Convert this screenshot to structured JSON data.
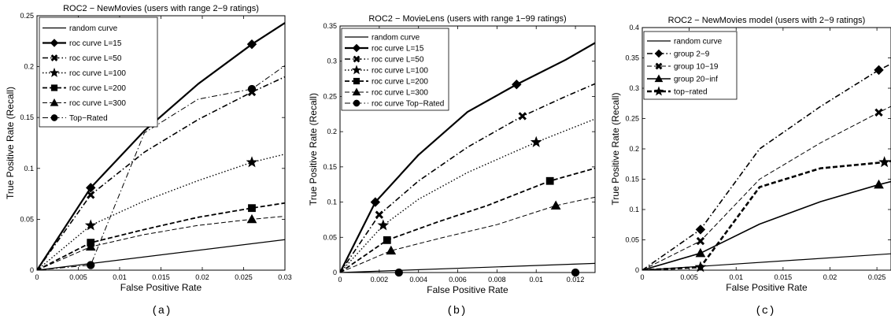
{
  "chart_data": [
    {
      "type": "line",
      "title": "ROC2 − NewMovies (users with range 2−9 ratings)",
      "xlabel": "False Positive Rate",
      "ylabel": "True Positive Rate (Recall)",
      "caption": "(a)",
      "xlim": [
        0,
        0.03
      ],
      "ylim": [
        0,
        0.25
      ],
      "xticks": [
        0,
        0.005,
        0.01,
        0.015,
        0.02,
        0.025,
        0.03
      ],
      "xtick_labels": [
        "0",
        "0.005",
        "0.01",
        "0.015",
        "0.02",
        "0.025",
        "0.03"
      ],
      "yticks": [
        0,
        0.05,
        0.1,
        0.15,
        0.2,
        0.25
      ],
      "ytick_labels": [
        "0",
        "0.05",
        "0.1",
        "0.15",
        "0.2",
        "0.25"
      ],
      "grid": false,
      "legend_position": "top-left",
      "series": [
        {
          "name": "random curve",
          "style": "solid",
          "width": 1.2,
          "marker": "none",
          "x": [
            0,
            0.03
          ],
          "y": [
            0,
            0.03
          ],
          "markers_at": []
        },
        {
          "name": "roc curve L=15",
          "style": "solid",
          "width": 2.2,
          "marker": "diamond",
          "x": [
            0,
            0.0065,
            0.013,
            0.0195,
            0.026,
            0.03
          ],
          "y": [
            0,
            0.081,
            0.137,
            0.183,
            0.222,
            0.243
          ],
          "markers_at": [
            1,
            4
          ]
        },
        {
          "name": "roc curve L=50",
          "style": "dashdot",
          "width": 1.6,
          "marker": "x",
          "x": [
            0,
            0.0065,
            0.013,
            0.0195,
            0.026,
            0.03
          ],
          "y": [
            0,
            0.074,
            0.116,
            0.148,
            0.175,
            0.19
          ],
          "markers_at": [
            1,
            4
          ]
        },
        {
          "name": "roc curve L=100",
          "style": "dotted",
          "width": 1.4,
          "marker": "star",
          "x": [
            0,
            0.0065,
            0.013,
            0.0195,
            0.026,
            0.03
          ],
          "y": [
            0,
            0.044,
            0.068,
            0.088,
            0.106,
            0.114
          ],
          "markers_at": [
            1,
            4
          ]
        },
        {
          "name": "roc curve L=200",
          "style": "dashed",
          "width": 1.8,
          "marker": "square",
          "x": [
            0,
            0.0065,
            0.013,
            0.0195,
            0.026,
            0.03
          ],
          "y": [
            0,
            0.027,
            0.04,
            0.052,
            0.061,
            0.066
          ],
          "markers_at": [
            1,
            4
          ]
        },
        {
          "name": "roc curve L=300",
          "style": "dashed",
          "width": 1.0,
          "marker": "triangle",
          "x": [
            0,
            0.0065,
            0.013,
            0.0195,
            0.026,
            0.03
          ],
          "y": [
            0,
            0.023,
            0.035,
            0.044,
            0.05,
            0.053
          ],
          "markers_at": [
            1,
            4
          ]
        },
        {
          "name": "Top−Rated",
          "style": "dashdot",
          "width": 1.0,
          "marker": "circle",
          "x": [
            0,
            0.0065,
            0.013,
            0.0195,
            0.026,
            0.03
          ],
          "y": [
            0,
            0.005,
            0.135,
            0.168,
            0.178,
            0.201
          ],
          "markers_at": [
            1,
            4
          ]
        }
      ]
    },
    {
      "type": "line",
      "title": "ROC2 − MovieLens (users with range 1−99 ratings)",
      "xlabel": "False Positive Rate",
      "ylabel": "True Positive Rate (Recall)",
      "caption": "(b)",
      "xlim": [
        0,
        0.013
      ],
      "ylim": [
        0,
        0.35
      ],
      "xticks": [
        0,
        0.002,
        0.004,
        0.006,
        0.008,
        0.01,
        0.012
      ],
      "xtick_labels": [
        "0",
        "0.002",
        "0.004",
        "0.006",
        "0.008",
        "0.01",
        "0.012"
      ],
      "yticks": [
        0,
        0.05,
        0.1,
        0.15,
        0.2,
        0.25,
        0.3,
        0.35
      ],
      "ytick_labels": [
        "0",
        "0.05",
        "0.1",
        "0.15",
        "0.2",
        "0.25",
        "0.3",
        "0.35"
      ],
      "grid": false,
      "legend_position": "top-left",
      "series": [
        {
          "name": "random curve",
          "style": "solid",
          "width": 1.2,
          "marker": "none",
          "x": [
            0,
            0.013
          ],
          "y": [
            0,
            0.013
          ],
          "markers_at": []
        },
        {
          "name": "roc curve L=15",
          "style": "solid",
          "width": 2.2,
          "marker": "diamond",
          "x": [
            0,
            0.0018,
            0.004,
            0.0065,
            0.009,
            0.0115,
            0.013
          ],
          "y": [
            0,
            0.1,
            0.167,
            0.228,
            0.267,
            0.302,
            0.326
          ],
          "markers_at": [
            1,
            4
          ]
        },
        {
          "name": "roc curve L=50",
          "style": "dashdot",
          "width": 1.6,
          "marker": "x",
          "x": [
            0,
            0.002,
            0.004,
            0.0065,
            0.0093,
            0.0115,
            0.013
          ],
          "y": [
            0,
            0.082,
            0.13,
            0.178,
            0.222,
            0.25,
            0.268
          ],
          "markers_at": [
            1,
            4
          ]
        },
        {
          "name": "roc curve L=100",
          "style": "dotted",
          "width": 1.4,
          "marker": "star",
          "x": [
            0,
            0.0022,
            0.004,
            0.0065,
            0.01,
            0.013
          ],
          "y": [
            0,
            0.067,
            0.104,
            0.142,
            0.185,
            0.218
          ],
          "markers_at": [
            1,
            4
          ]
        },
        {
          "name": "roc curve L=200",
          "style": "dashed",
          "width": 1.8,
          "marker": "square",
          "x": [
            0,
            0.0024,
            0.005,
            0.0075,
            0.0107,
            0.013
          ],
          "y": [
            0,
            0.046,
            0.072,
            0.095,
            0.13,
            0.148
          ],
          "markers_at": [
            1,
            4
          ]
        },
        {
          "name": "roc curve L=300",
          "style": "dashed",
          "width": 1.0,
          "marker": "triangle",
          "x": [
            0,
            0.0026,
            0.005,
            0.008,
            0.011,
            0.013
          ],
          "y": [
            0,
            0.031,
            0.048,
            0.068,
            0.095,
            0.107
          ],
          "markers_at": [
            1,
            4
          ]
        },
        {
          "name": "roc curve Top−Rated",
          "style": "dashdot",
          "width": 1.0,
          "marker": "circle",
          "x": [
            0,
            0.003,
            0.012
          ],
          "y": [
            0,
            0.0,
            0.0
          ],
          "markers_at": [
            1,
            2
          ]
        }
      ]
    },
    {
      "type": "line",
      "title": "ROC2 − NewMovies model (users with 2−9 ratings)",
      "xlabel": "False Positive Rate",
      "ylabel": "True Positive Rate (Recall)",
      "caption": "(c)",
      "xlim": [
        0,
        0.0265
      ],
      "ylim": [
        0,
        0.4
      ],
      "xticks": [
        0,
        0.005,
        0.01,
        0.015,
        0.02,
        0.025
      ],
      "xtick_labels": [
        "0",
        "0.005",
        "0.01",
        "0.015",
        "0.02",
        "0.025"
      ],
      "yticks": [
        0,
        0.05,
        0.1,
        0.15,
        0.2,
        0.25,
        0.3,
        0.35,
        0.4
      ],
      "ytick_labels": [
        "0",
        "0.05",
        "0.1",
        "0.15",
        "0.2",
        "0.25",
        "0.3",
        "0.35",
        "0.4"
      ],
      "grid": false,
      "legend_position": "top-left",
      "series": [
        {
          "name": "random curve",
          "style": "solid",
          "width": 1.2,
          "marker": "none",
          "x": [
            0,
            0.0265
          ],
          "y": [
            0,
            0.027
          ],
          "markers_at": []
        },
        {
          "name": "group 2−9",
          "style": "dashdot",
          "width": 1.6,
          "marker": "diamond",
          "x": [
            0,
            0.0062,
            0.0125,
            0.019,
            0.0252,
            0.0265
          ],
          "y": [
            0,
            0.067,
            0.2,
            0.27,
            0.33,
            0.34
          ],
          "markers_at": [
            1,
            4
          ]
        },
        {
          "name": "group 10−19",
          "style": "dashed",
          "width": 1.0,
          "marker": "x",
          "x": [
            0,
            0.0062,
            0.0125,
            0.019,
            0.0252,
            0.0265
          ],
          "y": [
            0,
            0.048,
            0.15,
            0.21,
            0.26,
            0.27
          ],
          "markers_at": [
            1,
            4
          ]
        },
        {
          "name": "group 20−inf",
          "style": "solid",
          "width": 1.6,
          "marker": "triangle",
          "x": [
            0,
            0.0062,
            0.0125,
            0.019,
            0.0252,
            0.0265
          ],
          "y": [
            0,
            0.028,
            0.076,
            0.113,
            0.141,
            0.146
          ],
          "markers_at": [
            1,
            4
          ]
        },
        {
          "name": "top−rated",
          "style": "dashed",
          "width": 2.6,
          "marker": "star",
          "x": [
            0,
            0.0062,
            0.0125,
            0.019,
            0.0258,
            0.0265
          ],
          "y": [
            0,
            0.005,
            0.137,
            0.168,
            0.178,
            0.18
          ],
          "markers_at": [
            1,
            4
          ]
        }
      ]
    }
  ]
}
